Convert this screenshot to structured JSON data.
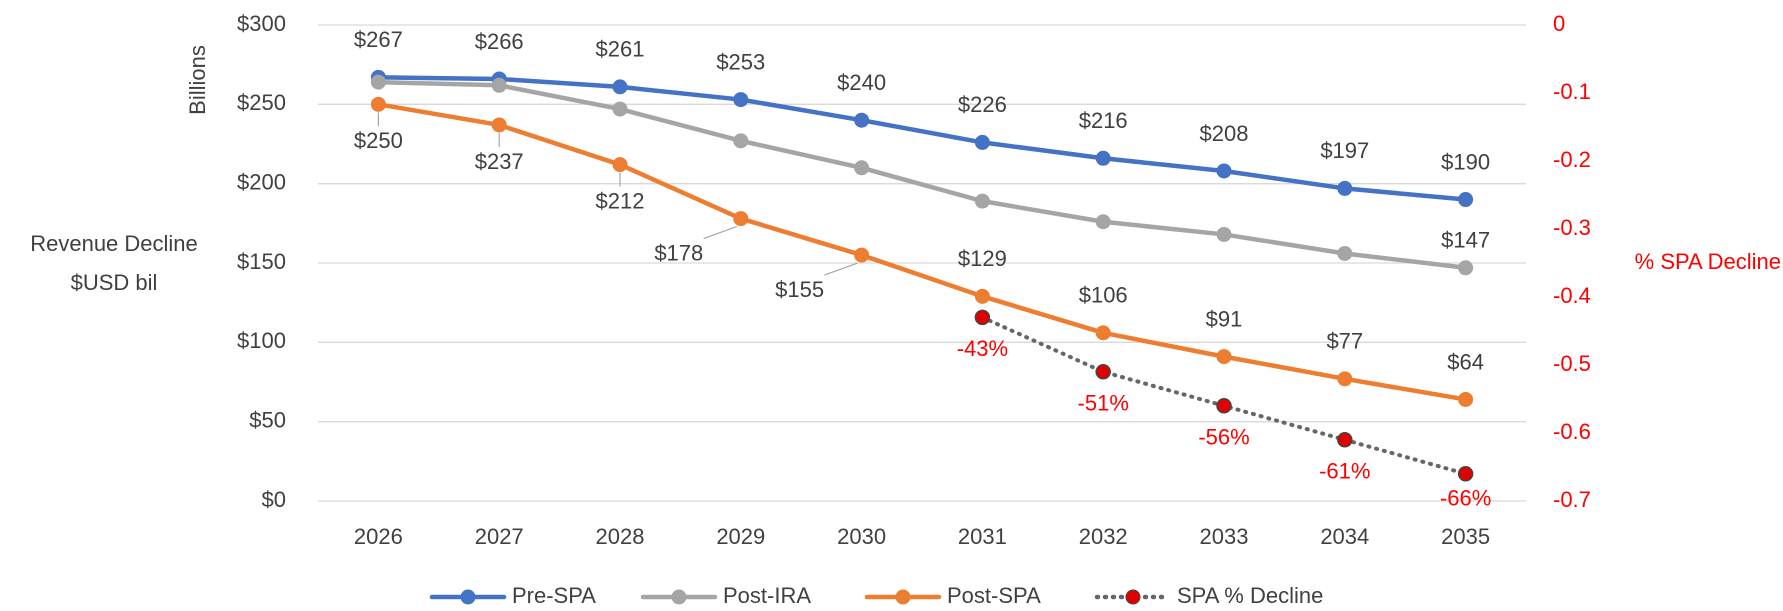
{
  "chart_data": {
    "type": "line",
    "categories": [
      "2026",
      "2027",
      "2028",
      "2029",
      "2030",
      "2031",
      "2032",
      "2033",
      "2034",
      "2035"
    ],
    "y_label_top": "Billions",
    "y_label": [
      "Revenue Decline",
      "$USD  bil"
    ],
    "y2_label": "% SPA Decline",
    "ylim": [
      0,
      300
    ],
    "yticks": [
      {
        "value": 0,
        "label": "$0"
      },
      {
        "value": 50,
        "label": "$50"
      },
      {
        "value": 100,
        "label": "$100"
      },
      {
        "value": 150,
        "label": "$150"
      },
      {
        "value": 200,
        "label": "$200"
      },
      {
        "value": 250,
        "label": "$250"
      },
      {
        "value": 300,
        "label": "$300"
      }
    ],
    "y2lim": [
      -0.7,
      0
    ],
    "y2ticks": [
      0,
      -0.1,
      -0.2,
      -0.3,
      -0.4,
      -0.5,
      -0.6,
      -0.7
    ],
    "y2_color": "#ff0000",
    "grid": true,
    "legend": "bottom",
    "series": [
      {
        "name": "Pre-SPA",
        "color": "#4472c4",
        "values": [
          267,
          266,
          261,
          253,
          240,
          226,
          216,
          208,
          197,
          190
        ],
        "value_labels": [
          "$267",
          "$266",
          "$261",
          "$253",
          "$240",
          "$226",
          "$216",
          "$208",
          "$197",
          "$190"
        ]
      },
      {
        "name": "Post-IRA",
        "color": "#a5a5a5",
        "values": [
          264,
          262,
          247,
          227,
          210,
          189,
          176,
          168,
          156,
          147
        ],
        "value_labels": [
          null,
          null,
          null,
          null,
          null,
          null,
          null,
          null,
          null,
          "$147"
        ]
      },
      {
        "name": "Post-SPA",
        "color": "#ed7d31",
        "values": [
          250,
          237,
          212,
          178,
          155,
          129,
          106,
          91,
          77,
          64
        ],
        "value_labels": [
          "$250",
          "$237",
          "$212",
          "$178",
          "$155",
          "$129",
          "$106",
          "$91",
          "$77",
          "$64"
        ]
      },
      {
        "name": "SPA % Decline",
        "color": "#666666",
        "marker_color": "#e00000",
        "dotted": true,
        "axis": "y2",
        "values": [
          null,
          null,
          null,
          null,
          null,
          -0.43,
          -0.51,
          -0.56,
          -0.61,
          -0.66
        ],
        "value_labels": [
          null,
          null,
          null,
          null,
          null,
          "-43%",
          "-51%",
          "-56%",
          "-61%",
          "-66%"
        ]
      }
    ]
  }
}
